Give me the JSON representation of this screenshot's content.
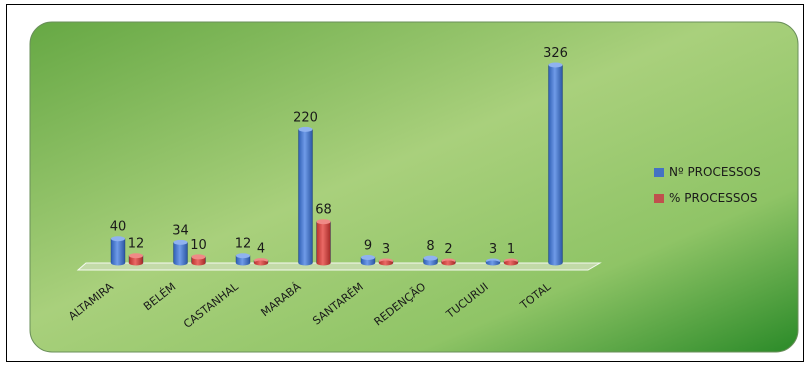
{
  "chart_data": {
    "type": "bar",
    "categories": [
      "ALTAMIRA",
      "BELÉM",
      "CASTANHAL",
      "MARABÁ",
      "SANTARÉM",
      "REDENÇÃO",
      "TUCURUI",
      "TOTAL"
    ],
    "series": [
      {
        "name": "Nº PROCESSOS",
        "values": [
          40,
          34,
          12,
          220,
          9,
          8,
          3,
          326
        ],
        "color": "#4472c4"
      },
      {
        "name": "% PROCESSOS",
        "values": [
          12,
          10,
          4,
          68,
          3,
          2,
          1,
          null
        ],
        "color": "#c0504d"
      }
    ],
    "title": "",
    "xlabel": "",
    "ylabel": "",
    "ylim": [
      0,
      340
    ],
    "grid": false,
    "legend": "right",
    "background": [
      "#6fb04a",
      "#a7cf7a",
      "#2e8a2c"
    ]
  }
}
